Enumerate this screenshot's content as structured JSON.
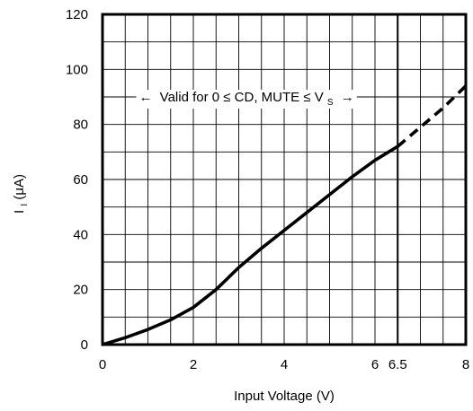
{
  "chart_data": {
    "type": "line",
    "title": "",
    "xlabel": "Input Voltage (V)",
    "ylabel": {
      "main": "I",
      "sub": "I",
      "unit": " (μA)"
    },
    "xlim": [
      0,
      8
    ],
    "ylim": [
      0,
      120
    ],
    "x_major_ticks": [
      0,
      2,
      4,
      6,
      8
    ],
    "x_extra_ticks": [
      6.5
    ],
    "x_tick_labels": [
      "0",
      "2",
      "4",
      "6",
      "8"
    ],
    "x_extra_tick_labels": [
      "6.5"
    ],
    "x_minor_step": 0.5,
    "y_major_ticks": [
      0,
      20,
      40,
      60,
      80,
      100,
      120
    ],
    "y_tick_labels": [
      "0",
      "20",
      "40",
      "60",
      "80",
      "100",
      "120"
    ],
    "y_minor_step": 10,
    "grid": true,
    "series": [
      {
        "style": "solid",
        "x": [
          0,
          0.5,
          1.0,
          1.5,
          2.0,
          2.5,
          3.0,
          3.5,
          4.0,
          4.5,
          5.0,
          5.5,
          6.0,
          6.5
        ],
        "y": [
          0,
          2.5,
          5.5,
          9,
          13.5,
          20,
          28,
          35,
          41.5,
          48,
          54.5,
          61,
          67,
          72
        ]
      },
      {
        "style": "dashed",
        "x": [
          6.5,
          7.0,
          7.5,
          8.0
        ],
        "y": [
          72,
          79,
          86,
          94
        ]
      }
    ],
    "vertical_line": {
      "x": 6.5
    },
    "annotation": {
      "left_arrow": "←",
      "text": "Valid for 0 ≤ CD, MUTE ≤ V",
      "subscript": "S",
      "right_arrow": "→",
      "y": 90
    }
  }
}
